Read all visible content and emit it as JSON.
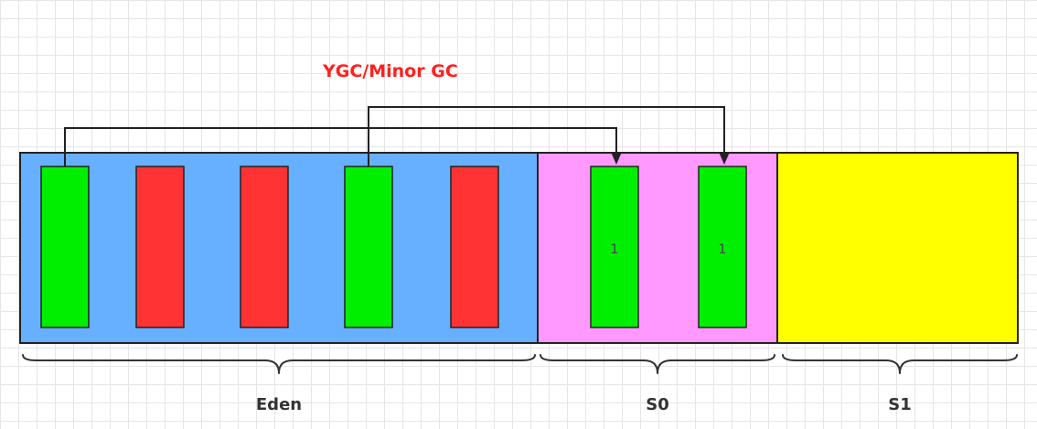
{
  "title": "YGC/Minor GC",
  "colors": {
    "title": "#ff2020",
    "eden": "#66b0ff",
    "s0": "#ff99ff",
    "s1": "#ffff00",
    "live_object": "#00ee00",
    "dead_object": "#ff3333"
  },
  "regions": [
    {
      "id": "eden",
      "label": "Eden"
    },
    {
      "id": "s0",
      "label": "S0"
    },
    {
      "id": "s1",
      "label": "S1"
    }
  ],
  "eden_objects": [
    {
      "state": "live"
    },
    {
      "state": "dead"
    },
    {
      "state": "dead"
    },
    {
      "state": "live"
    },
    {
      "state": "dead"
    }
  ],
  "s0_objects": [
    {
      "state": "live",
      "age": "1"
    },
    {
      "state": "live",
      "age": "1"
    }
  ]
}
